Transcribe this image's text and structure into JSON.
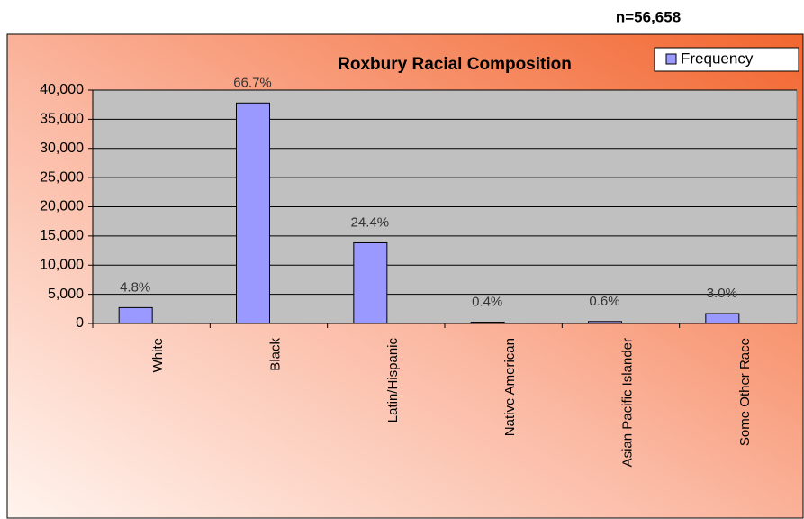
{
  "chart_data": {
    "type": "bar",
    "title": "Roxbury Racial Composition",
    "subtitle": "n=56,658",
    "categories": [
      "White",
      "Black",
      "Latin/Hispanic",
      "Native American",
      "Asian Pacific Islander",
      "Some Other Race"
    ],
    "series": [
      {
        "name": "Frequency",
        "color": "#9999ff",
        "values": [
          2720,
          37791,
          13825,
          227,
          340,
          1700
        ],
        "value_labels": [
          "4.8%",
          "66.7%",
          "24.4%",
          "0.4%",
          "0.6%",
          "3.0%"
        ]
      }
    ],
    "ylim": [
      0,
      40000
    ],
    "yticks": [
      0,
      {
        "value": 5000,
        "label": "5,000"
      },
      {
        "value": 10000,
        "label": "10,000"
      },
      {
        "value": 15000,
        "label": "15,000"
      },
      {
        "value": 20000,
        "label": "20,000"
      },
      {
        "value": 25000,
        "label": "25,000"
      },
      {
        "value": 30000,
        "label": "30,000"
      },
      {
        "value": 35000,
        "label": "35,000"
      },
      {
        "value": 40000,
        "label": "40,000"
      }
    ],
    "grid": true,
    "legend": "top-right"
  }
}
